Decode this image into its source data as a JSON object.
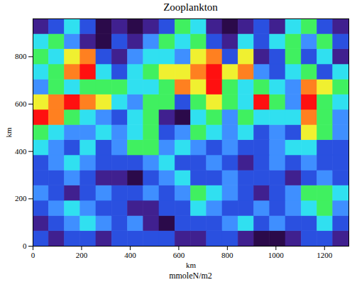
{
  "chart_data": {
    "type": "heatmap",
    "title": "Zooplankton",
    "x_label": "km",
    "y_label": "km",
    "z_label": "mmoleN/m2",
    "xlim": [
      0,
      1300
    ],
    "ylim": [
      0,
      960
    ],
    "xticks": [
      0,
      200,
      400,
      600,
      800,
      1000,
      1200
    ],
    "yticks": [
      0,
      200,
      400,
      600,
      800
    ],
    "zlim": [
      0,
      9
    ],
    "x_bins": [
      0,
      65,
      130,
      195,
      260,
      325,
      390,
      455,
      520,
      585,
      650,
      715,
      780,
      845,
      910,
      975,
      1040,
      1105,
      1170,
      1235,
      1300
    ],
    "y_bins": [
      0,
      64,
      128,
      192,
      256,
      320,
      384,
      448,
      512,
      576,
      640,
      704,
      768,
      832,
      896,
      960
    ],
    "values": [
      [
        3,
        2,
        3,
        3,
        2,
        3,
        3,
        3,
        3,
        2,
        2,
        3,
        3,
        2,
        1,
        1,
        2,
        3,
        3,
        2
      ],
      [
        2,
        3,
        4,
        5,
        4,
        3,
        4,
        2,
        1,
        3,
        3,
        3,
        4,
        5,
        3,
        4,
        3,
        3,
        5,
        3
      ],
      [
        3,
        4,
        5,
        4,
        3,
        3,
        2,
        2,
        3,
        3,
        5,
        4,
        3,
        3,
        4,
        3,
        4,
        5,
        6,
        4
      ],
      [
        4,
        3,
        2,
        3,
        4,
        3,
        3,
        4,
        3,
        4,
        6,
        5,
        4,
        3,
        2,
        3,
        4,
        6,
        6,
        5
      ],
      [
        3,
        3,
        4,
        3,
        2,
        2,
        1,
        3,
        4,
        5,
        3,
        3,
        4,
        3,
        3,
        3,
        2,
        3,
        4,
        3
      ],
      [
        3,
        4,
        5,
        4,
        3,
        3,
        3,
        4,
        5,
        3,
        3,
        4,
        3,
        2,
        3,
        4,
        3,
        4,
        3,
        3
      ],
      [
        5,
        4,
        3,
        5,
        3,
        4,
        6,
        6,
        4,
        5,
        4,
        3,
        4,
        3,
        3,
        4,
        5,
        5,
        3,
        3
      ],
      [
        6,
        5,
        4,
        4,
        5,
        4,
        5,
        6,
        3,
        4,
        6,
        5,
        4,
        5,
        3,
        4,
        3,
        7,
        6,
        4
      ],
      [
        9,
        8,
        6,
        5,
        4,
        3,
        5,
        6,
        2,
        1,
        5,
        6,
        4,
        6,
        5,
        5,
        5,
        8,
        6,
        4
      ],
      [
        7,
        8,
        9,
        8,
        7,
        5,
        4,
        6,
        6,
        3,
        6,
        7,
        6,
        5,
        9,
        6,
        4,
        9,
        6,
        5
      ],
      [
        4,
        6,
        5,
        6,
        6,
        6,
        5,
        5,
        6,
        8,
        7,
        9,
        6,
        5,
        6,
        5,
        4,
        8,
        7,
        6
      ],
      [
        5,
        6,
        8,
        9,
        5,
        3,
        5,
        6,
        7,
        7,
        8,
        9,
        7,
        8,
        4,
        3,
        5,
        6,
        3,
        5
      ],
      [
        6,
        5,
        7,
        8,
        3,
        2,
        4,
        5,
        5,
        4,
        7,
        8,
        3,
        7,
        2,
        3,
        6,
        3,
        5,
        2
      ],
      [
        5,
        6,
        4,
        2,
        1,
        3,
        2,
        4,
        6,
        5,
        6,
        3,
        2,
        5,
        3,
        5,
        6,
        4,
        6,
        3
      ],
      [
        2,
        3,
        5,
        3,
        1,
        2,
        1,
        2,
        3,
        6,
        5,
        2,
        1,
        2,
        3,
        2,
        5,
        6,
        3,
        2
      ]
    ]
  }
}
